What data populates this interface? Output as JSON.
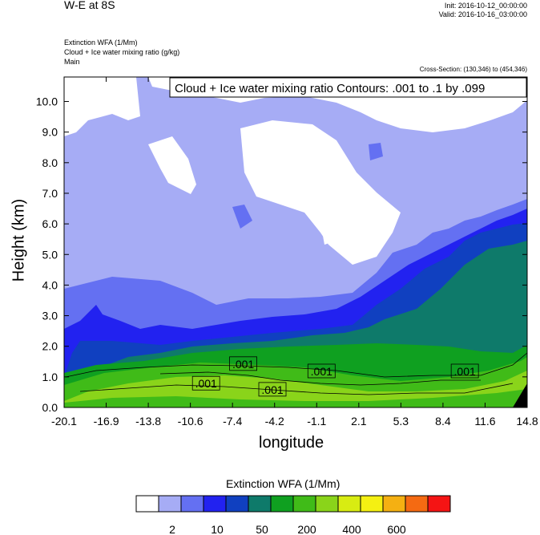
{
  "header": {
    "title": "W-E at 8S",
    "init": "Init: 2016-10-12_00:00:00",
    "valid": "Valid: 2016-10-16_03:00:00",
    "field1": "Extinction WFA   (1/Mm)",
    "field2": "Cloud + Ice water mixing ratio   (g/kg)",
    "field3": "Main",
    "cross_section": "Cross-Section: (130,346) to (454,346)"
  },
  "chart_data": {
    "type": "heatmap",
    "annotation": "Cloud + Ice water mixing ratio Contours: .001 to .1 by .099",
    "xlabel": "longitude",
    "ylabel": "Height (km)",
    "x_ticks": [
      "-20.1",
      "-16.9",
      "-13.8",
      "-10.6",
      "-7.4",
      "-4.2",
      "-1.1",
      "2.1",
      "5.3",
      "8.4",
      "11.6",
      "14.8"
    ],
    "y_ticks": [
      "0.0",
      "1.0",
      "2.0",
      "3.0",
      "4.0",
      "5.0",
      "6.0",
      "7.0",
      "8.0",
      "9.0",
      "10.0"
    ],
    "xlim": [
      -20.1,
      14.8
    ],
    "ylim": [
      0,
      10.8
    ],
    "contour_labels": [
      {
        "text": ".001",
        "x": -9.4,
        "y": 0.78
      },
      {
        "text": ".001",
        "x": -6.6,
        "y": 1.42
      },
      {
        "text": ".001",
        "x": -4.4,
        "y": 0.58
      },
      {
        "text": ".001",
        "x": -0.7,
        "y": 1.18
      },
      {
        "text": ".001",
        "x": 10.1,
        "y": 1.18
      }
    ],
    "colorbar": {
      "title": "Extinction WFA  (1/Mm)",
      "colors": [
        "#ffffff",
        "#a6acf5",
        "#6470f2",
        "#2222f0",
        "#1040c0",
        "#0e7a6a",
        "#0fa020",
        "#40bb18",
        "#8ad41a",
        "#d8ec12",
        "#f5f012",
        "#f5b012",
        "#f56a12",
        "#f51414"
      ],
      "labels": [
        "2",
        "10",
        "50",
        "200",
        "400",
        "600"
      ]
    }
  }
}
